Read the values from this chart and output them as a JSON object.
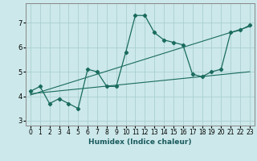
{
  "xlabel": "Humidex (Indice chaleur)",
  "ylabel": "",
  "background_color": "#cce8ea",
  "grid_color": "#aacfd2",
  "line_color": "#1a6b5e",
  "xlim": [
    -0.5,
    23.5
  ],
  "ylim": [
    2.8,
    7.8
  ],
  "xticks": [
    0,
    1,
    2,
    3,
    4,
    5,
    6,
    7,
    8,
    9,
    10,
    11,
    12,
    13,
    14,
    15,
    16,
    17,
    18,
    19,
    20,
    21,
    22,
    23
  ],
  "yticks": [
    3,
    4,
    5,
    6,
    7
  ],
  "series1_x": [
    0,
    1,
    2,
    3,
    4,
    5,
    6,
    7,
    8,
    9,
    10,
    11,
    12,
    13,
    14,
    15,
    16,
    17,
    18,
    19,
    20,
    21,
    22,
    23
  ],
  "series1_y": [
    4.2,
    4.4,
    3.7,
    3.9,
    3.7,
    3.5,
    5.1,
    5.0,
    4.4,
    4.4,
    5.8,
    7.3,
    7.3,
    6.6,
    6.3,
    6.2,
    6.1,
    4.9,
    4.8,
    5.0,
    5.1,
    6.6,
    6.7,
    6.9
  ],
  "series2_x": [
    0,
    23
  ],
  "series2_y": [
    4.05,
    6.85
  ],
  "series3_x": [
    0,
    23
  ],
  "series3_y": [
    4.1,
    5.0
  ],
  "spine_color": "#888888",
  "tick_fontsize": 5.5,
  "xlabel_fontsize": 6.5
}
